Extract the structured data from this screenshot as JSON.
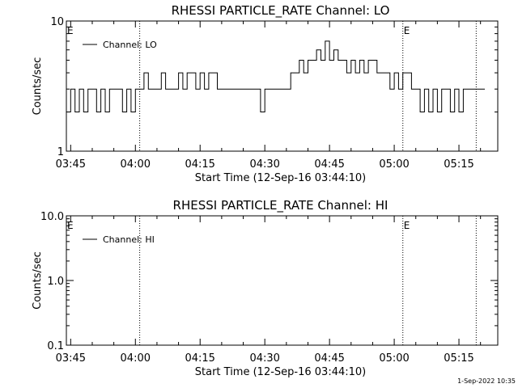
{
  "footer_timestamp": "1-Sep-2022 10:35",
  "chart_data": [
    {
      "type": "line",
      "title": "RHESSI PARTICLE_RATE Channel: LO",
      "xlabel": "Start Time (12-Sep-16 03:44:10)",
      "ylabel": "Counts/sec",
      "yscale": "log",
      "ylim": [
        1,
        10
      ],
      "ytick_values": [
        1,
        10
      ],
      "ytick_labels": [
        "1",
        "10"
      ],
      "xlim": [
        "03:44",
        "05:24"
      ],
      "xtick_labels": [
        "03:45",
        "04:00",
        "04:15",
        "04:30",
        "04:45",
        "05:00",
        "05:15"
      ],
      "legend": "top-left",
      "series": [
        {
          "name": "Channel: LO",
          "color": "#000000",
          "x": [
            "03:44",
            "03:45",
            "03:46",
            "03:47",
            "03:48",
            "03:49",
            "03:50",
            "03:51",
            "03:52",
            "03:53",
            "03:54",
            "03:55",
            "03:56",
            "03:57",
            "03:58",
            "03:59",
            "04:00",
            "04:01",
            "04:02",
            "04:03",
            "04:04",
            "04:05",
            "04:06",
            "04:07",
            "04:08",
            "04:09",
            "04:10",
            "04:11",
            "04:12",
            "04:13",
            "04:14",
            "04:15",
            "04:16",
            "04:17",
            "04:18",
            "04:19",
            "04:20",
            "04:21",
            "04:22",
            "04:23",
            "04:24",
            "04:25",
            "04:26",
            "04:27",
            "04:28",
            "04:29",
            "04:30",
            "04:31",
            "04:32",
            "04:33",
            "04:34",
            "04:35",
            "04:36",
            "04:37",
            "04:38",
            "04:39",
            "04:40",
            "04:41",
            "04:42",
            "04:43",
            "04:44",
            "04:45",
            "04:46",
            "04:47",
            "04:48",
            "04:49",
            "04:50",
            "04:51",
            "04:52",
            "04:53",
            "04:54",
            "04:55",
            "04:56",
            "04:57",
            "04:58",
            "04:59",
            "05:00",
            "05:01",
            "05:02",
            "05:03",
            "05:04",
            "05:05",
            "05:06",
            "05:07",
            "05:08",
            "05:09",
            "05:10",
            "05:11",
            "05:12",
            "05:13",
            "05:14",
            "05:15",
            "05:16",
            "05:17",
            "05:18",
            "05:19",
            "05:20"
          ],
          "y": [
            2,
            3,
            2,
            3,
            2,
            3,
            3,
            2,
            3,
            2,
            3,
            3,
            3,
            2,
            3,
            2,
            3,
            3,
            4,
            3,
            3,
            3,
            4,
            3,
            3,
            3,
            4,
            3,
            4,
            4,
            3,
            4,
            3,
            4,
            4,
            3,
            3,
            3,
            3,
            3,
            3,
            3,
            3,
            3,
            3,
            2,
            3,
            3,
            3,
            3,
            3,
            3,
            4,
            4,
            5,
            4,
            5,
            5,
            6,
            5,
            7,
            5,
            6,
            5,
            5,
            4,
            5,
            4,
            5,
            4,
            5,
            5,
            4,
            4,
            4,
            3,
            4,
            3,
            4,
            4,
            3,
            3,
            2,
            3,
            2,
            3,
            2,
            3,
            3,
            2,
            3,
            2,
            3,
            3,
            3,
            3,
            3
          ]
        }
      ],
      "markers": [
        {
          "x": "03:44",
          "label": "E"
        },
        {
          "x": "04:01",
          "label": ""
        },
        {
          "x": "05:02",
          "label": "E"
        },
        {
          "x": "05:19",
          "label": ""
        }
      ]
    },
    {
      "type": "line",
      "title": "RHESSI PARTICLE_RATE Channel: HI",
      "xlabel": "Start Time (12-Sep-16 03:44:10)",
      "ylabel": "Counts/sec",
      "yscale": "log",
      "ylim": [
        0.1,
        10
      ],
      "ytick_values": [
        0.1,
        1,
        10
      ],
      "ytick_labels": [
        "0.1",
        "1.0",
        "10.0"
      ],
      "xlim": [
        "03:44",
        "05:24"
      ],
      "xtick_labels": [
        "03:45",
        "04:00",
        "04:15",
        "04:30",
        "04:45",
        "05:00",
        "05:15"
      ],
      "legend": "top-left",
      "series": [
        {
          "name": "Channel: HI",
          "color": "#000000",
          "x": [],
          "y": []
        }
      ],
      "markers": [
        {
          "x": "03:44",
          "label": "E"
        },
        {
          "x": "04:01",
          "label": ""
        },
        {
          "x": "05:02",
          "label": "E"
        },
        {
          "x": "05:19",
          "label": ""
        }
      ]
    }
  ]
}
